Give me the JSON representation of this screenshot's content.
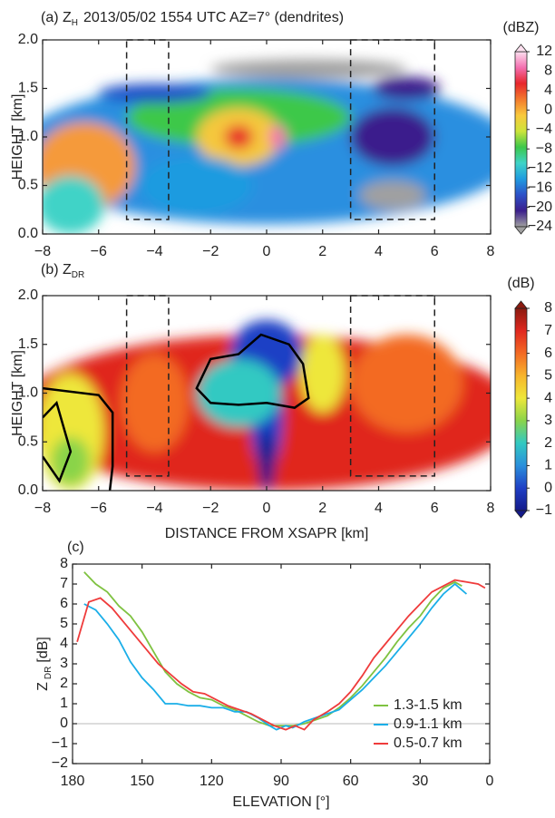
{
  "chart_data": [
    {
      "type": "heatmap",
      "title": [
        "(a) Z",
        "H",
        "2013/05/02 1554 UTC AZ=7° (dendrites)"
      ],
      "ylabel": "HEIGHT [km]",
      "xlim": [
        -8,
        8
      ],
      "xticks": [
        {
          "value": -8,
          "label": "−8"
        },
        {
          "value": -6,
          "label": "−6"
        },
        {
          "value": -4,
          "label": "−4"
        },
        {
          "value": -2,
          "label": "−2"
        },
        0,
        2,
        4,
        6,
        8
      ],
      "ylim": [
        0,
        2
      ],
      "yticks": [
        {
          "value": 0,
          "label": "0.0"
        },
        0.5,
        {
          "value": 1,
          "label": "1.0"
        },
        1.5,
        {
          "value": 2,
          "label": "2.0"
        }
      ],
      "boxes": [
        {
          "x": [
            -5,
            -3.5
          ],
          "y": [
            0.15,
            2
          ]
        },
        {
          "x": [
            3,
            6
          ],
          "y": [
            0.15,
            2
          ]
        }
      ],
      "colorbar": {
        "label": "(dBZ)",
        "lim": [
          -24,
          12
        ],
        "ticks": [
          12,
          8,
          4,
          0,
          {
            "value": -4,
            "label": "−4"
          },
          {
            "value": -8,
            "label": "−8"
          },
          {
            "value": -12,
            "label": "−12"
          },
          {
            "value": -16,
            "label": "−16"
          },
          {
            "value": -20,
            "label": "−20"
          },
          {
            "value": -24,
            "label": "−24"
          }
        ],
        "colors": [
          "#fde0ef",
          "#f46fb0",
          "#e8262b",
          "#f37a2d",
          "#f9c93c",
          "#cde43a",
          "#3cc84a",
          "#3fd3c7",
          "#1f9be0",
          "#2c50c8",
          "#3b1f8c",
          "#a0a0a0"
        ]
      }
    },
    {
      "type": "heatmap",
      "title": [
        "(b) Z",
        "DR"
      ],
      "xlabel": "DISTANCE FROM XSAPR [km]",
      "ylabel": "HEIGHT [km]",
      "xlim": [
        -8,
        8
      ],
      "xticks": [
        {
          "value": -8,
          "label": "−8"
        },
        {
          "value": -6,
          "label": "−6"
        },
        {
          "value": -4,
          "label": "−4"
        },
        {
          "value": -2,
          "label": "−2"
        },
        0,
        2,
        4,
        6,
        8
      ],
      "ylim": [
        0,
        2
      ],
      "yticks": [
        {
          "value": 0,
          "label": "0.0"
        },
        0.5,
        {
          "value": 1,
          "label": "1.0"
        },
        1.5,
        {
          "value": 2,
          "label": "2.0"
        }
      ],
      "boxes": [
        {
          "x": [
            -5,
            -3.5
          ],
          "y": [
            0.15,
            2
          ]
        },
        {
          "x": [
            3,
            6
          ],
          "y": [
            0.15,
            2
          ]
        }
      ],
      "colorbar": {
        "label": "(dB)",
        "lim": [
          -1,
          8
        ],
        "ticks": [
          8,
          7,
          6,
          5,
          4,
          3,
          2,
          1,
          0,
          {
            "value": -1,
            "label": "−1"
          }
        ],
        "colors": [
          "#8b1a10",
          "#e0281f",
          "#f36a24",
          "#f7b52c",
          "#eee73a",
          "#8ad44a",
          "#32c9c2",
          "#2a8fdc",
          "#1f3fc5",
          "#141a8a"
        ]
      }
    },
    {
      "type": "line",
      "title": "(c)",
      "xlabel": "ELEVATION [°]",
      "ylabel": [
        "Z",
        "DR",
        "[dB]"
      ],
      "xlim": [
        180,
        0
      ],
      "xticks": [
        180,
        150,
        120,
        90,
        60,
        30,
        0
      ],
      "ylim": [
        -2,
        8
      ],
      "yticks": [
        {
          "value": -2,
          "label": "−2"
        },
        {
          "value": -1,
          "label": "−1"
        },
        0,
        1,
        2,
        3,
        4,
        5,
        6,
        7,
        8
      ],
      "legend": "lower right",
      "series": [
        {
          "name": "1.3-1.5 km",
          "color": "#7fc241",
          "x": [
            175,
            170,
            165,
            160,
            155,
            150,
            145,
            140,
            135,
            130,
            125,
            120,
            115,
            110,
            105,
            100,
            95,
            90,
            85,
            80,
            75,
            70,
            65,
            60,
            55,
            50,
            45,
            40,
            35,
            30,
            25,
            20,
            15,
            12
          ],
          "values": [
            7.6,
            7.0,
            6.6,
            5.9,
            5.4,
            4.6,
            3.6,
            2.6,
            2.0,
            1.6,
            1.3,
            1.2,
            0.9,
            0.7,
            0.4,
            0.1,
            -0.1,
            -0.1,
            -0.1,
            0.0,
            0.2,
            0.4,
            0.8,
            1.3,
            1.9,
            2.6,
            3.3,
            4.1,
            4.8,
            5.4,
            6.2,
            6.8,
            7.1,
            6.9
          ]
        },
        {
          "name": "0.9-1.1 km",
          "color": "#1aaee8",
          "x": [
            175,
            170,
            165,
            160,
            155,
            150,
            145,
            140,
            135,
            130,
            125,
            120,
            115,
            110,
            105,
            100,
            95,
            92,
            88,
            85,
            80,
            75,
            70,
            65,
            60,
            55,
            50,
            45,
            40,
            35,
            30,
            25,
            20,
            15,
            10
          ],
          "values": [
            6.0,
            5.7,
            5.0,
            4.2,
            3.1,
            2.3,
            1.7,
            1.0,
            1.0,
            0.9,
            0.9,
            0.8,
            0.8,
            0.6,
            0.6,
            0.3,
            -0.1,
            -0.3,
            -0.1,
            -0.2,
            0.1,
            0.3,
            0.5,
            0.7,
            1.2,
            1.7,
            2.3,
            2.9,
            3.6,
            4.3,
            5.0,
            5.8,
            6.5,
            7.0,
            6.5
          ]
        },
        {
          "name": "0.5-0.7 km",
          "color": "#ef3b3b",
          "x": [
            178,
            173,
            168,
            163,
            158,
            153,
            148,
            143,
            138,
            133,
            128,
            123,
            118,
            113,
            108,
            103,
            98,
            93,
            88,
            84,
            80,
            76,
            70,
            65,
            60,
            55,
            50,
            45,
            40,
            35,
            30,
            25,
            20,
            15,
            10,
            5,
            2
          ],
          "values": [
            4.1,
            6.1,
            6.3,
            5.8,
            5.1,
            4.4,
            3.7,
            3.0,
            2.5,
            2.0,
            1.6,
            1.5,
            1.2,
            0.9,
            0.7,
            0.5,
            0.2,
            -0.1,
            -0.3,
            -0.1,
            -0.3,
            0.2,
            0.6,
            1.0,
            1.6,
            2.4,
            3.3,
            4.0,
            4.7,
            5.4,
            6.0,
            6.6,
            6.9,
            7.2,
            7.1,
            7.0,
            6.8
          ]
        }
      ]
    }
  ]
}
